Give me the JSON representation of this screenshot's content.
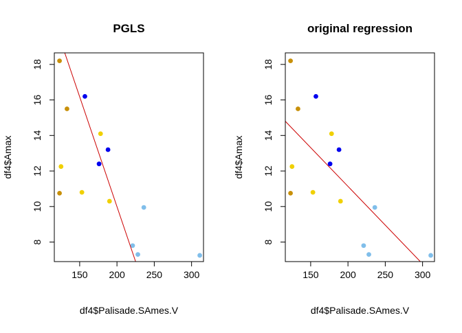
{
  "chart_data": [
    {
      "type": "scatter",
      "title": "PGLS",
      "xlabel": "df4$Palisade.SAmes.V",
      "ylabel": "df4$Amax",
      "xlim": [
        116,
        316
      ],
      "ylim": [
        6.9,
        18.65
      ],
      "xticks": [
        150,
        200,
        250,
        300
      ],
      "yticks": [
        8,
        10,
        12,
        14,
        16,
        18
      ],
      "grid": false,
      "legend": "none",
      "points": [
        {
          "x": 123,
          "y": 18.2,
          "color": "#C8900A"
        },
        {
          "x": 133,
          "y": 15.5,
          "color": "#C8900A"
        },
        {
          "x": 123,
          "y": 10.75,
          "color": "#C8900A"
        },
        {
          "x": 157,
          "y": 16.2,
          "color": "#0000EE"
        },
        {
          "x": 188,
          "y": 13.2,
          "color": "#0000EE"
        },
        {
          "x": 176,
          "y": 12.4,
          "color": "#0000EE"
        },
        {
          "x": 125,
          "y": 12.25,
          "color": "#F0D000"
        },
        {
          "x": 178,
          "y": 14.1,
          "color": "#F0D000"
        },
        {
          "x": 153,
          "y": 10.8,
          "color": "#F0D000"
        },
        {
          "x": 190,
          "y": 10.3,
          "color": "#F0D000"
        },
        {
          "x": 236,
          "y": 9.95,
          "color": "#80BEEA"
        },
        {
          "x": 221,
          "y": 7.8,
          "color": "#80BEEA"
        },
        {
          "x": 228,
          "y": 7.3,
          "color": "#80BEEA"
        },
        {
          "x": 311,
          "y": 7.25,
          "color": "#80BEEA"
        }
      ],
      "line": {
        "x1": 130,
        "y1": 18.65,
        "x2": 225,
        "y2": 6.9,
        "color": "#CC0000"
      }
    },
    {
      "type": "scatter",
      "title": "original regression",
      "xlabel": "df4$Palisade.SAmes.V",
      "ylabel": "df4$Amax",
      "xlim": [
        116,
        316
      ],
      "ylim": [
        6.9,
        18.65
      ],
      "xticks": [
        150,
        200,
        250,
        300
      ],
      "yticks": [
        8,
        10,
        12,
        14,
        16,
        18
      ],
      "grid": false,
      "legend": "none",
      "points": [
        {
          "x": 123,
          "y": 18.2,
          "color": "#C8900A"
        },
        {
          "x": 133,
          "y": 15.5,
          "color": "#C8900A"
        },
        {
          "x": 123,
          "y": 10.75,
          "color": "#C8900A"
        },
        {
          "x": 157,
          "y": 16.2,
          "color": "#0000EE"
        },
        {
          "x": 188,
          "y": 13.2,
          "color": "#0000EE"
        },
        {
          "x": 176,
          "y": 12.4,
          "color": "#0000EE"
        },
        {
          "x": 125,
          "y": 12.25,
          "color": "#F0D000"
        },
        {
          "x": 178,
          "y": 14.1,
          "color": "#F0D000"
        },
        {
          "x": 153,
          "y": 10.8,
          "color": "#F0D000"
        },
        {
          "x": 190,
          "y": 10.3,
          "color": "#F0D000"
        },
        {
          "x": 236,
          "y": 9.95,
          "color": "#80BEEA"
        },
        {
          "x": 221,
          "y": 7.8,
          "color": "#80BEEA"
        },
        {
          "x": 228,
          "y": 7.3,
          "color": "#80BEEA"
        },
        {
          "x": 311,
          "y": 7.25,
          "color": "#80BEEA"
        }
      ],
      "line": {
        "x1": 116,
        "y1": 14.8,
        "x2": 297,
        "y2": 6.9,
        "color": "#CC0000"
      }
    }
  ]
}
